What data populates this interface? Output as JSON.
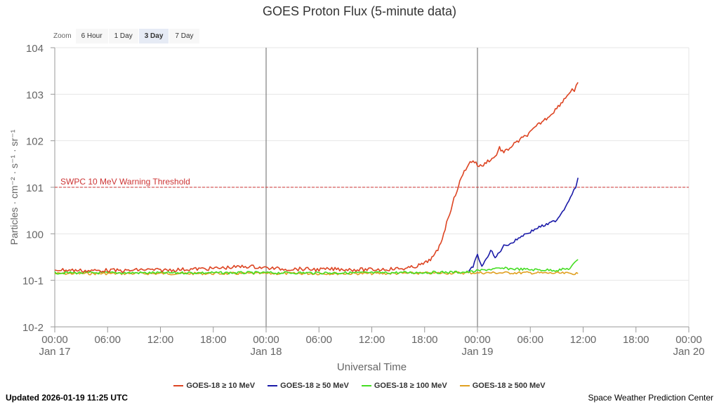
{
  "chart_data": {
    "type": "line",
    "title": "GOES Proton Flux (5-minute data)",
    "xlabel": "Universal Time",
    "ylabel": "Particles · cm⁻² · s⁻¹ · sr⁻¹",
    "y_scale": "log",
    "ylim": [
      0.01,
      10000
    ],
    "xlim": [
      "2026-01-17 00:00",
      "2026-01-20 00:00"
    ],
    "x_ticks": [
      {
        "x": "2026-01-17 00:00",
        "time": "00:00",
        "date": "Jan 17"
      },
      {
        "x": "2026-01-17 06:00",
        "time": "06:00",
        "date": ""
      },
      {
        "x": "2026-01-17 12:00",
        "time": "12:00",
        "date": ""
      },
      {
        "x": "2026-01-17 18:00",
        "time": "18:00",
        "date": ""
      },
      {
        "x": "2026-01-18 00:00",
        "time": "00:00",
        "date": "Jan 18"
      },
      {
        "x": "2026-01-18 06:00",
        "time": "06:00",
        "date": ""
      },
      {
        "x": "2026-01-18 12:00",
        "time": "12:00",
        "date": ""
      },
      {
        "x": "2026-01-18 18:00",
        "time": "18:00",
        "date": ""
      },
      {
        "x": "2026-01-19 00:00",
        "time": "00:00",
        "date": "Jan 19"
      },
      {
        "x": "2026-01-19 06:00",
        "time": "06:00",
        "date": ""
      },
      {
        "x": "2026-01-19 12:00",
        "time": "12:00",
        "date": ""
      },
      {
        "x": "2026-01-19 18:00",
        "time": "18:00",
        "date": ""
      },
      {
        "x": "2026-01-20 00:00",
        "time": "00:00",
        "date": "Jan 20"
      }
    ],
    "y_ticks": [
      {
        "value": 10000,
        "base": "10",
        "exp": "4"
      },
      {
        "value": 1000,
        "base": "10",
        "exp": "3"
      },
      {
        "value": 100,
        "base": "10",
        "exp": "2"
      },
      {
        "value": 10,
        "base": "10",
        "exp": "1"
      },
      {
        "value": 1,
        "base": "10",
        "exp": "0"
      },
      {
        "value": 0.1,
        "base": "10",
        "exp": "-1"
      },
      {
        "value": 0.01,
        "base": "10",
        "exp": "-2"
      }
    ],
    "day_boundaries": [
      "2026-01-18 00:00",
      "2026-01-19 00:00"
    ],
    "threshold": {
      "label": "SWPC 10 MeV Warning Threshold",
      "value": 10,
      "color": "#cc3333"
    },
    "grid": true,
    "legend_position": "bottom",
    "series": [
      {
        "name": "GOES-18 ≥ 10 MeV",
        "color": "#dd4422",
        "points": [
          [
            "2026-01-17 00:00",
            0.17
          ],
          [
            "2026-01-17 02:00",
            0.165
          ],
          [
            "2026-01-17 04:00",
            0.16
          ],
          [
            "2026-01-17 06:00",
            0.165
          ],
          [
            "2026-01-17 08:00",
            0.16
          ],
          [
            "2026-01-17 10:00",
            0.17
          ],
          [
            "2026-01-17 12:00",
            0.165
          ],
          [
            "2026-01-17 14:00",
            0.17
          ],
          [
            "2026-01-17 16:00",
            0.175
          ],
          [
            "2026-01-17 18:00",
            0.18
          ],
          [
            "2026-01-17 20:00",
            0.19
          ],
          [
            "2026-01-17 22:00",
            0.2
          ],
          [
            "2026-01-18 00:00",
            0.185
          ],
          [
            "2026-01-18 02:00",
            0.175
          ],
          [
            "2026-01-18 04:00",
            0.175
          ],
          [
            "2026-01-18 06:00",
            0.17
          ],
          [
            "2026-01-18 08:00",
            0.175
          ],
          [
            "2026-01-18 10:00",
            0.17
          ],
          [
            "2026-01-18 12:00",
            0.17
          ],
          [
            "2026-01-18 14:00",
            0.175
          ],
          [
            "2026-01-18 16:00",
            0.18
          ],
          [
            "2026-01-18 17:00",
            0.2
          ],
          [
            "2026-01-18 18:00",
            0.23
          ],
          [
            "2026-01-18 18:30",
            0.27
          ],
          [
            "2026-01-18 19:00",
            0.32
          ],
          [
            "2026-01-18 19:30",
            0.45
          ],
          [
            "2026-01-18 20:00",
            0.8
          ],
          [
            "2026-01-18 20:30",
            1.7
          ],
          [
            "2026-01-18 21:00",
            3.5
          ],
          [
            "2026-01-18 21:30",
            7.0
          ],
          [
            "2026-01-18 22:00",
            13
          ],
          [
            "2026-01-18 22:30",
            22
          ],
          [
            "2026-01-18 23:00",
            32
          ],
          [
            "2026-01-18 23:30",
            38
          ],
          [
            "2026-01-19 00:00",
            30
          ],
          [
            "2026-01-19 00:30",
            28
          ],
          [
            "2026-01-19 01:00",
            35
          ],
          [
            "2026-01-19 02:00",
            45
          ],
          [
            "2026-01-19 02:30",
            70
          ],
          [
            "2026-01-19 03:00",
            55
          ],
          [
            "2026-01-19 04:00",
            80
          ],
          [
            "2026-01-19 05:00",
            110
          ],
          [
            "2026-01-19 06:00",
            150
          ],
          [
            "2026-01-19 07:00",
            230
          ],
          [
            "2026-01-19 08:00",
            320
          ],
          [
            "2026-01-19 09:00",
            500
          ],
          [
            "2026-01-19 10:00",
            850
          ],
          [
            "2026-01-19 10:45",
            1300
          ],
          [
            "2026-01-19 11:00",
            1150
          ],
          [
            "2026-01-19 11:25",
            1800
          ]
        ]
      },
      {
        "name": "GOES-18 ≥ 50 MeV",
        "color": "#1a1aa8",
        "points": [
          [
            "2026-01-18 23:00",
            0.15
          ],
          [
            "2026-01-18 23:30",
            0.2
          ],
          [
            "2026-01-19 00:00",
            0.35
          ],
          [
            "2026-01-19 00:30",
            0.2
          ],
          [
            "2026-01-19 01:00",
            0.28
          ],
          [
            "2026-01-19 01:30",
            0.45
          ],
          [
            "2026-01-19 02:00",
            0.3
          ],
          [
            "2026-01-19 03:00",
            0.55
          ],
          [
            "2026-01-19 04:00",
            0.65
          ],
          [
            "2026-01-19 05:00",
            0.9
          ],
          [
            "2026-01-19 06:00",
            1.1
          ],
          [
            "2026-01-19 07:00",
            1.4
          ],
          [
            "2026-01-19 08:00",
            1.6
          ],
          [
            "2026-01-19 09:00",
            2.0
          ],
          [
            "2026-01-19 10:00",
            3.8
          ],
          [
            "2026-01-19 10:45",
            7.5
          ],
          [
            "2026-01-19 11:10",
            10
          ],
          [
            "2026-01-19 11:25",
            16
          ]
        ]
      },
      {
        "name": "GOES-18 ≥ 100 MeV",
        "color": "#44dd22",
        "points": [
          [
            "2026-01-17 00:00",
            0.145
          ],
          [
            "2026-01-17 12:00",
            0.145
          ],
          [
            "2026-01-18 00:00",
            0.145
          ],
          [
            "2026-01-18 12:00",
            0.145
          ],
          [
            "2026-01-18 23:00",
            0.15
          ],
          [
            "2026-01-19 01:00",
            0.17
          ],
          [
            "2026-01-19 03:00",
            0.18
          ],
          [
            "2026-01-19 06:00",
            0.17
          ],
          [
            "2026-01-19 09:00",
            0.165
          ],
          [
            "2026-01-19 10:30",
            0.18
          ],
          [
            "2026-01-19 11:25",
            0.28
          ]
        ]
      },
      {
        "name": "GOES-18 ≥ 500 MeV",
        "color": "#e0a020",
        "points": [
          [
            "2026-01-17 00:00",
            0.14
          ],
          [
            "2026-01-17 12:00",
            0.14
          ],
          [
            "2026-01-18 00:00",
            0.14
          ],
          [
            "2026-01-18 12:00",
            0.14
          ],
          [
            "2026-01-19 00:00",
            0.145
          ],
          [
            "2026-01-19 06:00",
            0.145
          ],
          [
            "2026-01-19 11:25",
            0.14
          ]
        ]
      }
    ]
  },
  "zoom": {
    "label": "Zoom",
    "buttons": [
      {
        "label": "6 Hour",
        "active": false
      },
      {
        "label": "1 Day",
        "active": false
      },
      {
        "label": "3 Day",
        "active": true
      },
      {
        "label": "7 Day",
        "active": false
      }
    ]
  },
  "footer": {
    "updated": "Updated 2026-01-19 11:25 UTC",
    "org": "Space Weather Prediction Center"
  }
}
